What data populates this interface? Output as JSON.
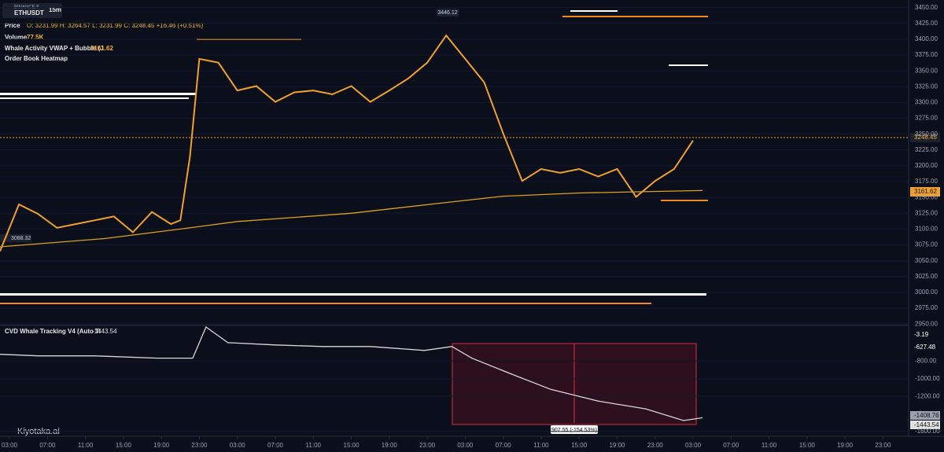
{
  "header": {
    "exchange": "BINANCE:F",
    "symbol": "ETHUSDT",
    "interval": "15m",
    "price_label": "Price",
    "ohlc": "O: 3231.99 H: 3264.57 L: 3231.99 C: 3248.45 +16.46 (+0.51%)",
    "volume_label": "Volume",
    "volume_value": "77.5K",
    "vwap_label": "Whale Activity VWAP + Bubble (J",
    "vwap_value": "3161.62",
    "heatmap_label": "Order Book Heatmap",
    "cvd_label": "CVD Whale Tracking V4 (Auto Ti",
    "cvd_value": "-1443.54",
    "high_tag": "3446.12",
    "low_tag": "3088.32",
    "last_tag": "3248.45",
    "vwap_tag": "3161.62",
    "cvd_tags": [
      "-3.19",
      "-627.48",
      "-1408.76",
      "-1443.54"
    ],
    "measure": "907.55 (-154.53%)",
    "logo": "Kiyotaka.ai"
  },
  "chart_data": [
    {
      "type": "line",
      "xlim": [
        -1,
        94.7
      ],
      "ylim": [
        2949,
        3462
      ],
      "xticks": [
        {
          "value": 0,
          "label": "03:00"
        },
        {
          "value": 4,
          "label": "07:00"
        },
        {
          "value": 8,
          "label": "11:00"
        },
        {
          "value": 12,
          "label": "15:00"
        },
        {
          "value": 16,
          "label": "19:00"
        },
        {
          "value": 20,
          "label": "23:00"
        },
        {
          "value": 24,
          "label": "03:00"
        },
        {
          "value": 28,
          "label": "07:00"
        },
        {
          "value": 32,
          "label": "11:00"
        },
        {
          "value": 36,
          "label": "15:00"
        },
        {
          "value": 40,
          "label": "19:00"
        },
        {
          "value": 44,
          "label": "23:00"
        },
        {
          "value": 48,
          "label": "03:00"
        },
        {
          "value": 52,
          "label": "07:00"
        },
        {
          "value": 56,
          "label": "11:00"
        },
        {
          "value": 60,
          "label": "15:00"
        },
        {
          "value": 64,
          "label": "19:00"
        },
        {
          "value": 68,
          "label": "23:00"
        },
        {
          "value": 72,
          "label": "03:00"
        },
        {
          "value": 76,
          "label": "07:00"
        },
        {
          "value": 80,
          "label": "11:00"
        },
        {
          "value": 84,
          "label": "15:00"
        },
        {
          "value": 88,
          "label": "19:00"
        },
        {
          "value": 92,
          "label": "23:00"
        }
      ],
      "yticks": [
        {
          "value": 3450,
          "label": "3450.00"
        },
        {
          "value": 3425,
          "label": "3425.00"
        },
        {
          "value": 3400,
          "label": "3400.00"
        },
        {
          "value": 3375,
          "label": "3375.00"
        },
        {
          "value": 3350,
          "label": "3350.00"
        },
        {
          "value": 3325,
          "label": "3325.00"
        },
        {
          "value": 3300,
          "label": "3300.00"
        },
        {
          "value": 3275,
          "label": "3275.00"
        },
        {
          "value": 3250,
          "label": "3250.00"
        },
        {
          "value": 3225,
          "label": "3225.00"
        },
        {
          "value": 3200,
          "label": "3200.00"
        },
        {
          "value": 3175,
          "label": "3175.00"
        },
        {
          "value": 3150,
          "label": "3150.00"
        },
        {
          "value": 3125,
          "label": "3125.00"
        },
        {
          "value": 3100,
          "label": "3100.00"
        },
        {
          "value": 3075,
          "label": "3075.00"
        },
        {
          "value": 3050,
          "label": "3050.00"
        },
        {
          "value": 3025,
          "label": "3025.00"
        },
        {
          "value": 3000,
          "label": "3000.00"
        },
        {
          "value": 2975,
          "label": "2975.00"
        },
        {
          "value": 2950,
          "label": "2950.00"
        }
      ],
      "series": [
        {
          "name": "Price",
          "color": "#f0a030",
          "x": [
            -1,
            1,
            3,
            5,
            7,
            9,
            11,
            13,
            15,
            17,
            18,
            19,
            20,
            22,
            24,
            26,
            28,
            30,
            32,
            34,
            36,
            38,
            40,
            42,
            44,
            46,
            48,
            50,
            52,
            54,
            56,
            58,
            60,
            62,
            64,
            66,
            68,
            70,
            72
          ],
          "values": [
            3065,
            3139,
            3124,
            3102,
            3108,
            3114,
            3120,
            3095,
            3127,
            3108,
            3114,
            3214,
            3369,
            3363,
            3319,
            3326,
            3301,
            3316,
            3319,
            3313,
            3326,
            3301,
            3319,
            3338,
            3363,
            3406,
            3369,
            3332,
            3251,
            3176,
            3195,
            3189,
            3195,
            3183,
            3195,
            3151,
            3176,
            3195,
            3240
          ]
        },
        {
          "name": "Whale Activity VWAP",
          "color": "#d9a21b",
          "x": [
            -1,
            10,
            18,
            24,
            36,
            46,
            52,
            60,
            73
          ],
          "values": [
            3072,
            3085,
            3100,
            3112,
            3125,
            3142,
            3152,
            3157,
            3161
          ]
        }
      ]
    },
    {
      "type": "line",
      "xlim": [
        -1,
        94.7
      ],
      "ylim": [
        -1655,
        -400
      ],
      "yticks": [
        {
          "value": -800,
          "label": "-800.00"
        },
        {
          "value": -1000,
          "label": "-1000.00"
        },
        {
          "value": -1200,
          "label": "-1200.00"
        },
        {
          "value": -1600,
          "label": "-1600.00"
        }
      ],
      "series": [
        {
          "name": "CVD",
          "color": "#d8d8d8",
          "x": [
            -1,
            3,
            9,
            15.6,
            19.3,
            20.7,
            23,
            28,
            33,
            38,
            43.7,
            46.6,
            48.7,
            52.8,
            57,
            62,
            67,
            71,
            73
          ],
          "values": [
            -720,
            -738,
            -738,
            -764,
            -764,
            -409,
            -587,
            -613,
            -631,
            -631,
            -676,
            -631,
            -764,
            -942,
            -1120,
            -1253,
            -1342,
            -1476,
            -1443.54
          ]
        }
      ]
    }
  ]
}
